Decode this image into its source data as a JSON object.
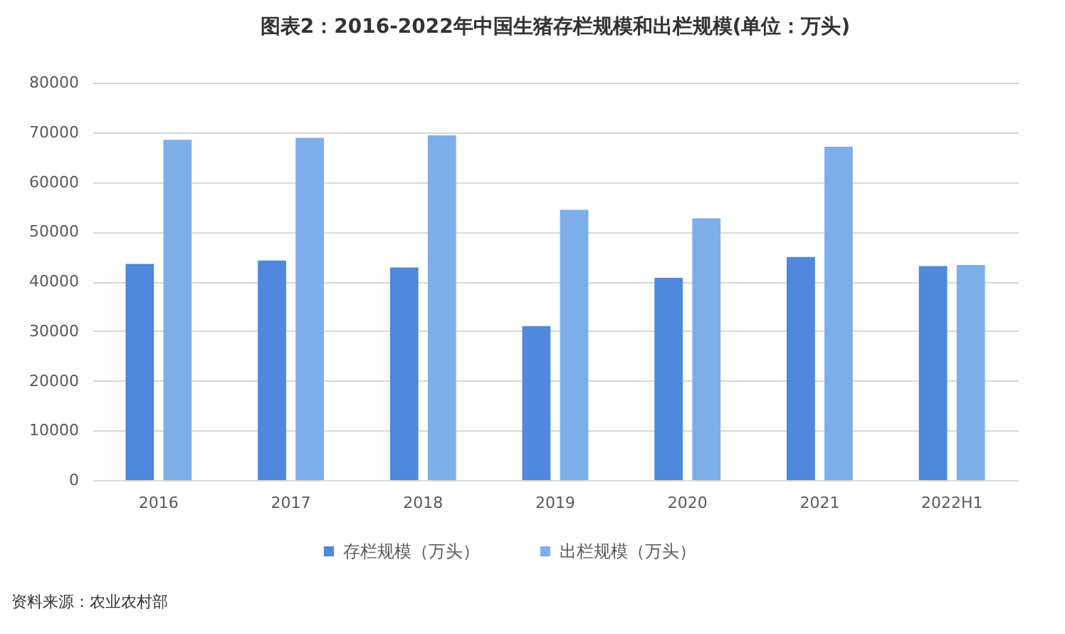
{
  "chart_data": {
    "type": "bar",
    "title": "图表2：2016-2022年中国生猪存栏规模和出栏规模(单位：万头)",
    "categories": [
      "2016",
      "2017",
      "2018",
      "2019",
      "2020",
      "2021",
      "2022H1"
    ],
    "series": [
      {
        "name": "存栏规模（万头）",
        "color": "#4f88dc",
        "values": [
          43500,
          44200,
          42800,
          31000,
          40700,
          44900,
          43100
        ]
      },
      {
        "name": "出栏规模（万头）",
        "color": "#7eaeea",
        "values": [
          68500,
          68900,
          69400,
          54400,
          52700,
          67100,
          43300
        ]
      }
    ],
    "ylim": [
      0,
      80000
    ],
    "yticks": [
      0,
      10000,
      20000,
      30000,
      40000,
      50000,
      60000,
      70000,
      80000
    ],
    "grid": "y",
    "legend": "bottom",
    "annotations": [
      "资料来源：农业农村部"
    ]
  }
}
